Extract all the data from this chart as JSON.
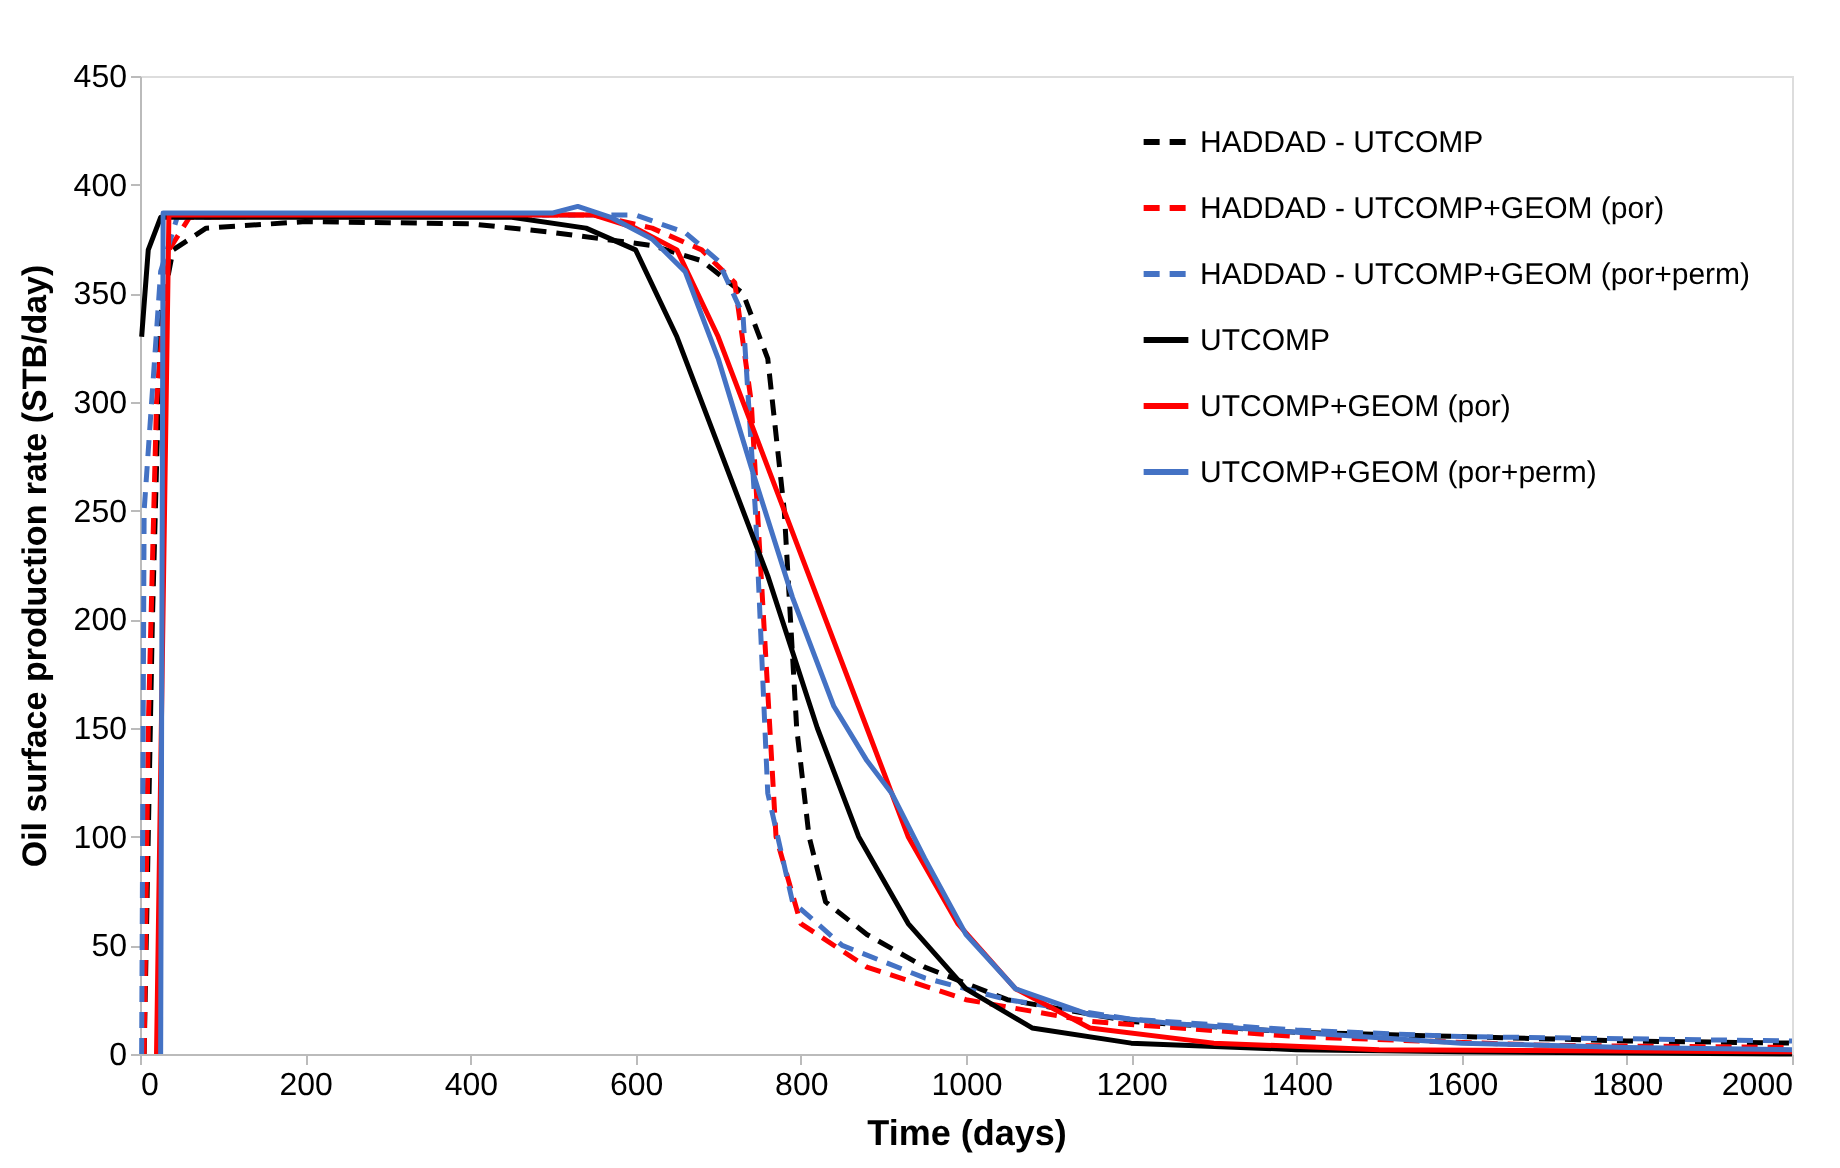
{
  "chart_data": {
    "type": "line",
    "xlabel": "Time (days)",
    "ylabel": "Oil surface production rate (STB/day)",
    "xlim": [
      0,
      2000
    ],
    "ylim": [
      0,
      450
    ],
    "xticks": [
      0,
      200,
      400,
      600,
      800,
      1000,
      1200,
      1400,
      1600,
      1800,
      2000
    ],
    "yticks": [
      0,
      50,
      100,
      150,
      200,
      250,
      300,
      350,
      400,
      450
    ],
    "grid": false,
    "legend": "top right",
    "marker": "none",
    "series": [
      {
        "name": "HADDAD - UTCOMP",
        "color": "#000000",
        "line_style": "dashed",
        "x": [
          5,
          15,
          25,
          40,
          80,
          200,
          400,
          500,
          560,
          620,
          680,
          730,
          760,
          780,
          795,
          810,
          830,
          880,
          950,
          1050,
          1200,
          1400,
          1600,
          1800,
          2000
        ],
        "values": [
          0,
          200,
          340,
          370,
          380,
          383,
          382,
          378,
          375,
          372,
          365,
          350,
          320,
          250,
          150,
          100,
          70,
          55,
          40,
          25,
          15,
          10,
          8,
          6,
          5
        ]
      },
      {
        "name": "HADDAD - UTCOMP+GEOM (por)",
        "color": "#ff0000",
        "line_style": "dashed",
        "x": [
          5,
          10,
          20,
          35,
          60,
          300,
          550,
          620,
          680,
          720,
          740,
          755,
          770,
          800,
          880,
          1000,
          1150,
          1400,
          1700,
          2000
        ],
        "values": [
          0,
          150,
          300,
          370,
          385,
          386,
          386,
          380,
          370,
          355,
          300,
          200,
          100,
          60,
          40,
          25,
          15,
          8,
          4,
          3
        ]
      },
      {
        "name": "HADDAD - UTCOMP+GEOM (por+perm)",
        "color": "#4472c4",
        "line_style": "dashed",
        "x": [
          2,
          5,
          25,
          45,
          300,
          600,
          660,
          700,
          730,
          745,
          760,
          790,
          850,
          950,
          1050,
          1200,
          1400,
          1600,
          1800,
          2000
        ],
        "values": [
          0,
          250,
          360,
          385,
          386,
          386,
          378,
          365,
          340,
          250,
          120,
          70,
          50,
          35,
          25,
          16,
          11,
          8,
          7,
          6
        ]
      },
      {
        "name": "UTCOMP",
        "color": "#000000",
        "line_style": "solid",
        "x": [
          2,
          10,
          25,
          200,
          450,
          540,
          600,
          650,
          700,
          760,
          820,
          870,
          930,
          1000,
          1080,
          1200,
          1400,
          1600,
          2000
        ],
        "values": [
          330,
          370,
          385,
          385,
          385,
          380,
          370,
          330,
          280,
          220,
          150,
          100,
          60,
          30,
          12,
          5,
          2,
          1,
          0
        ]
      },
      {
        "name": "UTCOMP+GEOM (por)",
        "color": "#ff0000",
        "line_style": "solid",
        "x": [
          20,
          35,
          300,
          550,
          600,
          650,
          700,
          740,
          780,
          830,
          880,
          930,
          990,
          1060,
          1150,
          1300,
          1500,
          2000
        ],
        "values": [
          0,
          386,
          386,
          386,
          380,
          370,
          330,
          290,
          250,
          200,
          150,
          100,
          60,
          30,
          12,
          5,
          2,
          1
        ]
      },
      {
        "name": "UTCOMP+GEOM (por+perm)",
        "color": "#4472c4",
        "line_style": "solid",
        "x": [
          25,
          28,
          300,
          500,
          530,
          570,
          620,
          660,
          700,
          740,
          790,
          840,
          880,
          910,
          950,
          1000,
          1060,
          1150,
          1250,
          1400,
          1600,
          1800,
          2000
        ],
        "values": [
          0,
          387,
          387,
          387,
          390,
          385,
          375,
          360,
          320,
          270,
          210,
          160,
          135,
          120,
          90,
          55,
          30,
          18,
          14,
          10,
          5,
          3,
          2
        ]
      }
    ]
  }
}
